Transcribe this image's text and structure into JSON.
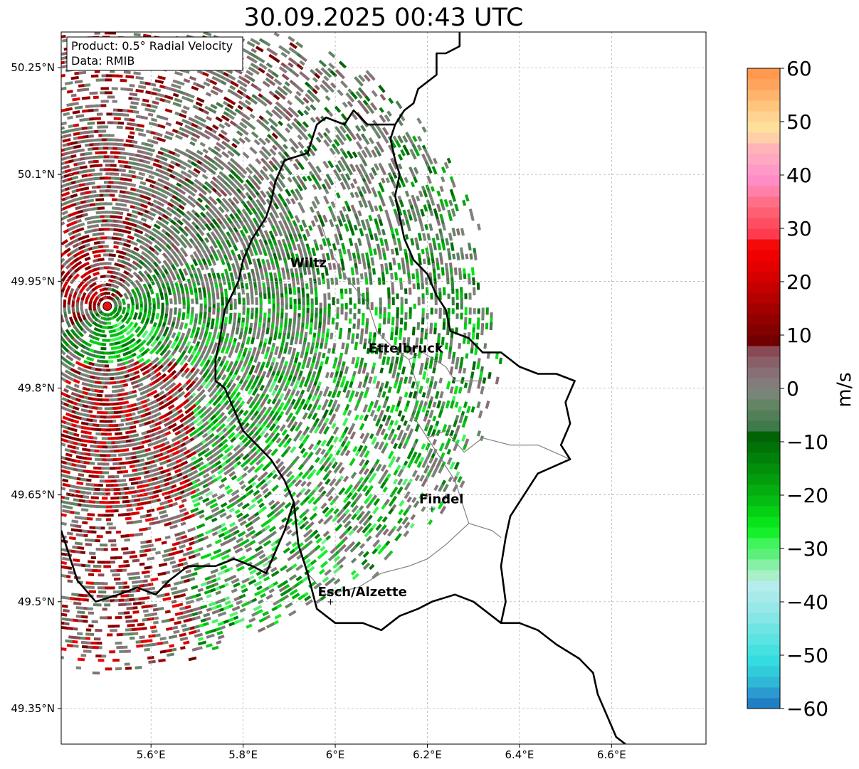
{
  "title": "30.09.2025 00:43 UTC",
  "info_box": {
    "product": "Product: 0.5° Radial Velocity",
    "data_source": "Data: RMIB"
  },
  "map": {
    "lon_range": [
      5.405,
      6.805
    ],
    "lat_range": [
      49.3,
      50.3
    ],
    "x_ticks": [
      {
        "value": 5.6,
        "label": "5.6°E"
      },
      {
        "value": 5.8,
        "label": "5.8°E"
      },
      {
        "value": 6.0,
        "label": "6°E"
      },
      {
        "value": 6.2,
        "label": "6.2°E"
      },
      {
        "value": 6.4,
        "label": "6.4°E"
      },
      {
        "value": 6.6,
        "label": "6.6°E"
      }
    ],
    "y_ticks": [
      {
        "value": 50.25,
        "label": "50.25°N"
      },
      {
        "value": 50.1,
        "label": "50.1°N"
      },
      {
        "value": 49.95,
        "label": "49.95°N"
      },
      {
        "value": 49.8,
        "label": "49.8°N"
      },
      {
        "value": 49.65,
        "label": "49.65°N"
      },
      {
        "value": 49.5,
        "label": "49.5°N"
      },
      {
        "value": 49.35,
        "label": "49.35°N"
      }
    ],
    "radar_site": {
      "lon": 5.505,
      "lat": 49.915,
      "color": "#e81010"
    },
    "places": [
      {
        "name": "Wiltz",
        "lon": 5.93,
        "lat": 49.97,
        "marker": false
      },
      {
        "name": "Ettelbruck",
        "lon": 6.1,
        "lat": 49.85,
        "marker": false
      },
      {
        "name": "Findel",
        "lon": 6.21,
        "lat": 49.63,
        "marker": true
      },
      {
        "name": "Esch/Alzette",
        "lon": 5.99,
        "lat": 49.5,
        "marker": true
      }
    ]
  },
  "colorbar": {
    "label": "m/s",
    "min": -60,
    "max": 60,
    "ticks": [
      {
        "value": 60,
        "label": "60"
      },
      {
        "value": 50,
        "label": "50"
      },
      {
        "value": 40,
        "label": "40"
      },
      {
        "value": 30,
        "label": "30"
      },
      {
        "value": 20,
        "label": "20"
      },
      {
        "value": 10,
        "label": "10"
      },
      {
        "value": 0,
        "label": "0"
      },
      {
        "value": -10,
        "label": "−10"
      },
      {
        "value": -20,
        "label": "−20"
      },
      {
        "value": -30,
        "label": "−30"
      },
      {
        "value": -40,
        "label": "−40"
      },
      {
        "value": -50,
        "label": "−50"
      },
      {
        "value": -60,
        "label": "−60"
      }
    ],
    "stops": [
      {
        "from": -60,
        "to": -58,
        "color": "#1f7fc4"
      },
      {
        "from": -58,
        "to": -56,
        "color": "#2a9ad0"
      },
      {
        "from": -56,
        "to": -54,
        "color": "#2eb7d6"
      },
      {
        "from": -54,
        "to": -52,
        "color": "#30ccdb"
      },
      {
        "from": -52,
        "to": -50,
        "color": "#34dcdf"
      },
      {
        "from": -50,
        "to": -48,
        "color": "#45e0e0"
      },
      {
        "from": -48,
        "to": -46,
        "color": "#5be3e2"
      },
      {
        "from": -46,
        "to": -44,
        "color": "#6fe4e4"
      },
      {
        "from": -44,
        "to": -42,
        "color": "#86e6e6"
      },
      {
        "from": -42,
        "to": -40,
        "color": "#98e8e8"
      },
      {
        "from": -40,
        "to": -38,
        "color": "#a8eaea"
      },
      {
        "from": -38,
        "to": -36,
        "color": "#b5eded"
      },
      {
        "from": -36,
        "to": -34,
        "color": "#a7f0c8"
      },
      {
        "from": -34,
        "to": -32,
        "color": "#86f0a4"
      },
      {
        "from": -32,
        "to": -30,
        "color": "#5cf07a"
      },
      {
        "from": -30,
        "to": -28,
        "color": "#3ff55a"
      },
      {
        "from": -28,
        "to": -26,
        "color": "#16f02a"
      },
      {
        "from": -26,
        "to": -24,
        "color": "#09e41a"
      },
      {
        "from": -24,
        "to": -22,
        "color": "#06d014"
      },
      {
        "from": -22,
        "to": -20,
        "color": "#05bd12"
      },
      {
        "from": -20,
        "to": -18,
        "color": "#04ad10"
      },
      {
        "from": -18,
        "to": -16,
        "color": "#039e0e"
      },
      {
        "from": -16,
        "to": -14,
        "color": "#028f0c"
      },
      {
        "from": -14,
        "to": -12,
        "color": "#01800a"
      },
      {
        "from": -12,
        "to": -10,
        "color": "#017208"
      },
      {
        "from": -10,
        "to": -8,
        "color": "#006406"
      },
      {
        "from": -8,
        "to": -6,
        "color": "#3e7a4a"
      },
      {
        "from": -6,
        "to": -4,
        "color": "#527f58"
      },
      {
        "from": -4,
        "to": -2,
        "color": "#648466"
      },
      {
        "from": -2,
        "to": 0,
        "color": "#788678"
      },
      {
        "from": 0,
        "to": 2,
        "color": "#847c7c"
      },
      {
        "from": 2,
        "to": 4,
        "color": "#876f75"
      },
      {
        "from": 4,
        "to": 6,
        "color": "#8a5f68"
      },
      {
        "from": 6,
        "to": 8,
        "color": "#8a4a55"
      },
      {
        "from": 8,
        "to": 10,
        "color": "#720000"
      },
      {
        "from": 10,
        "to": 12,
        "color": "#820000"
      },
      {
        "from": 12,
        "to": 14,
        "color": "#920000"
      },
      {
        "from": 14,
        "to": 16,
        "color": "#a30000"
      },
      {
        "from": 16,
        "to": 18,
        "color": "#b50000"
      },
      {
        "from": 18,
        "to": 20,
        "color": "#c60000"
      },
      {
        "from": 20,
        "to": 22,
        "color": "#d60000"
      },
      {
        "from": 22,
        "to": 24,
        "color": "#e40000"
      },
      {
        "from": 24,
        "to": 26,
        "color": "#f00000"
      },
      {
        "from": 26,
        "to": 28,
        "color": "#f50a0a"
      },
      {
        "from": 28,
        "to": 30,
        "color": "#ff3b4f"
      },
      {
        "from": 30,
        "to": 32,
        "color": "#ff4d62"
      },
      {
        "from": 32,
        "to": 34,
        "color": "#ff5f72"
      },
      {
        "from": 34,
        "to": 36,
        "color": "#ff7088"
      },
      {
        "from": 36,
        "to": 38,
        "color": "#ff80a8"
      },
      {
        "from": 38,
        "to": 40,
        "color": "#ff8cc4"
      },
      {
        "from": 40,
        "to": 42,
        "color": "#ff9ac8"
      },
      {
        "from": 42,
        "to": 44,
        "color": "#ffa8c0"
      },
      {
        "from": 44,
        "to": 46,
        "color": "#ffb4b8"
      },
      {
        "from": 46,
        "to": 48,
        "color": "#ffcfa8"
      },
      {
        "from": 48,
        "to": 50,
        "color": "#ffe09a"
      },
      {
        "from": 50,
        "to": 52,
        "color": "#ffd490"
      },
      {
        "from": 52,
        "to": 54,
        "color": "#ffc47e"
      },
      {
        "from": 54,
        "to": 56,
        "color": "#ffb46c"
      },
      {
        "from": 56,
        "to": 58,
        "color": "#ffa45c"
      },
      {
        "from": 58,
        "to": 60,
        "color": "#ff9950"
      }
    ]
  },
  "borders": {
    "national": [
      [
        [
          6.27,
          50.3
        ],
        [
          6.27,
          50.28
        ],
        [
          6.24,
          50.27
        ],
        [
          6.22,
          50.27
        ],
        [
          6.22,
          50.24
        ],
        [
          6.18,
          50.22
        ],
        [
          6.17,
          50.2
        ],
        [
          6.15,
          50.19
        ],
        [
          6.13,
          50.17
        ],
        [
          6.09,
          50.17
        ],
        [
          6.07,
          50.17
        ],
        [
          6.04,
          50.19
        ],
        [
          6.02,
          50.17
        ],
        [
          5.98,
          50.18
        ],
        [
          5.96,
          50.17
        ],
        [
          5.94,
          50.13
        ],
        [
          5.89,
          50.12
        ],
        [
          5.87,
          50.09
        ],
        [
          5.86,
          50.06
        ],
        [
          5.85,
          50.04
        ],
        [
          5.82,
          50.01
        ],
        [
          5.8,
          49.98
        ],
        [
          5.79,
          49.95
        ],
        [
          5.76,
          49.91
        ],
        [
          5.75,
          49.87
        ],
        [
          5.74,
          49.84
        ],
        [
          5.74,
          49.81
        ],
        [
          5.76,
          49.8
        ],
        [
          5.78,
          49.77
        ],
        [
          5.8,
          49.74
        ],
        [
          5.83,
          49.72
        ],
        [
          5.86,
          49.7
        ],
        [
          5.89,
          49.67
        ],
        [
          5.91,
          49.64
        ],
        [
          5.89,
          49.6
        ],
        [
          5.87,
          49.57
        ],
        [
          5.85,
          49.54
        ],
        [
          5.82,
          49.55
        ],
        [
          5.78,
          49.56
        ],
        [
          5.74,
          49.55
        ],
        [
          5.68,
          49.55
        ],
        [
          5.64,
          49.53
        ],
        [
          5.61,
          49.51
        ],
        [
          5.57,
          49.52
        ],
        [
          5.53,
          49.51
        ],
        [
          5.48,
          49.5
        ],
        [
          5.44,
          49.53
        ],
        [
          5.405,
          49.6
        ]
      ],
      [
        [
          6.13,
          50.17
        ],
        [
          6.12,
          50.15
        ],
        [
          6.13,
          50.12
        ],
        [
          6.14,
          50.1
        ],
        [
          6.13,
          50.07
        ],
        [
          6.14,
          50.04
        ],
        [
          6.15,
          50.01
        ],
        [
          6.17,
          49.98
        ],
        [
          6.2,
          49.96
        ],
        [
          6.22,
          49.93
        ],
        [
          6.24,
          49.91
        ],
        [
          6.25,
          49.88
        ],
        [
          6.29,
          49.87
        ],
        [
          6.32,
          49.85
        ],
        [
          6.36,
          49.85
        ],
        [
          6.4,
          49.83
        ],
        [
          6.44,
          49.82
        ],
        [
          6.48,
          49.82
        ],
        [
          6.52,
          49.81
        ],
        [
          6.5,
          49.78
        ],
        [
          6.51,
          49.75
        ],
        [
          6.49,
          49.72
        ],
        [
          6.51,
          49.7
        ],
        [
          6.44,
          49.68
        ],
        [
          6.42,
          49.66
        ],
        [
          6.38,
          49.62
        ],
        [
          6.37,
          49.59
        ],
        [
          6.36,
          49.55
        ],
        [
          6.37,
          49.5
        ],
        [
          6.36,
          49.47
        ],
        [
          6.4,
          49.47
        ],
        [
          6.44,
          49.46
        ],
        [
          6.48,
          49.44
        ],
        [
          6.53,
          49.42
        ],
        [
          6.56,
          49.4
        ],
        [
          6.57,
          49.37
        ],
        [
          6.59,
          49.34
        ],
        [
          6.61,
          49.31
        ],
        [
          6.63,
          49.3
        ]
      ],
      [
        [
          5.91,
          49.64
        ],
        [
          5.92,
          49.58
        ],
        [
          5.94,
          49.54
        ],
        [
          5.96,
          49.49
        ],
        [
          6.0,
          49.47
        ],
        [
          6.06,
          49.47
        ],
        [
          6.1,
          49.46
        ],
        [
          6.14,
          49.48
        ],
        [
          6.18,
          49.49
        ],
        [
          6.21,
          49.5
        ],
        [
          6.26,
          49.51
        ],
        [
          6.3,
          49.5
        ],
        [
          6.34,
          49.48
        ],
        [
          6.36,
          49.47
        ]
      ]
    ],
    "regional": [
      [
        [
          6.09,
          49.88
        ],
        [
          6.12,
          49.86
        ],
        [
          6.16,
          49.84
        ],
        [
          6.19,
          49.85
        ],
        [
          6.24,
          49.83
        ],
        [
          6.26,
          49.81
        ],
        [
          6.32,
          49.81
        ]
      ],
      [
        [
          6.16,
          49.84
        ],
        [
          6.18,
          49.8
        ],
        [
          6.17,
          49.76
        ],
        [
          6.2,
          49.73
        ],
        [
          6.24,
          49.74
        ],
        [
          6.28,
          49.71
        ],
        [
          6.32,
          49.73
        ],
        [
          6.38,
          49.72
        ],
        [
          6.44,
          49.72
        ],
        [
          6.51,
          49.7
        ]
      ],
      [
        [
          6.2,
          49.73
        ],
        [
          6.26,
          49.67
        ],
        [
          6.29,
          49.61
        ],
        [
          6.24,
          49.58
        ],
        [
          6.2,
          49.56
        ],
        [
          6.16,
          49.55
        ],
        [
          6.1,
          49.54
        ],
        [
          6.05,
          49.52
        ],
        [
          5.98,
          49.51
        ],
        [
          5.94,
          49.54
        ]
      ],
      [
        [
          6.29,
          49.61
        ],
        [
          6.34,
          49.6
        ],
        [
          6.36,
          49.59
        ]
      ],
      [
        [
          5.97,
          50.03
        ],
        [
          5.99,
          49.99
        ],
        [
          6.03,
          49.95
        ],
        [
          6.07,
          49.92
        ],
        [
          6.09,
          49.88
        ]
      ]
    ]
  }
}
